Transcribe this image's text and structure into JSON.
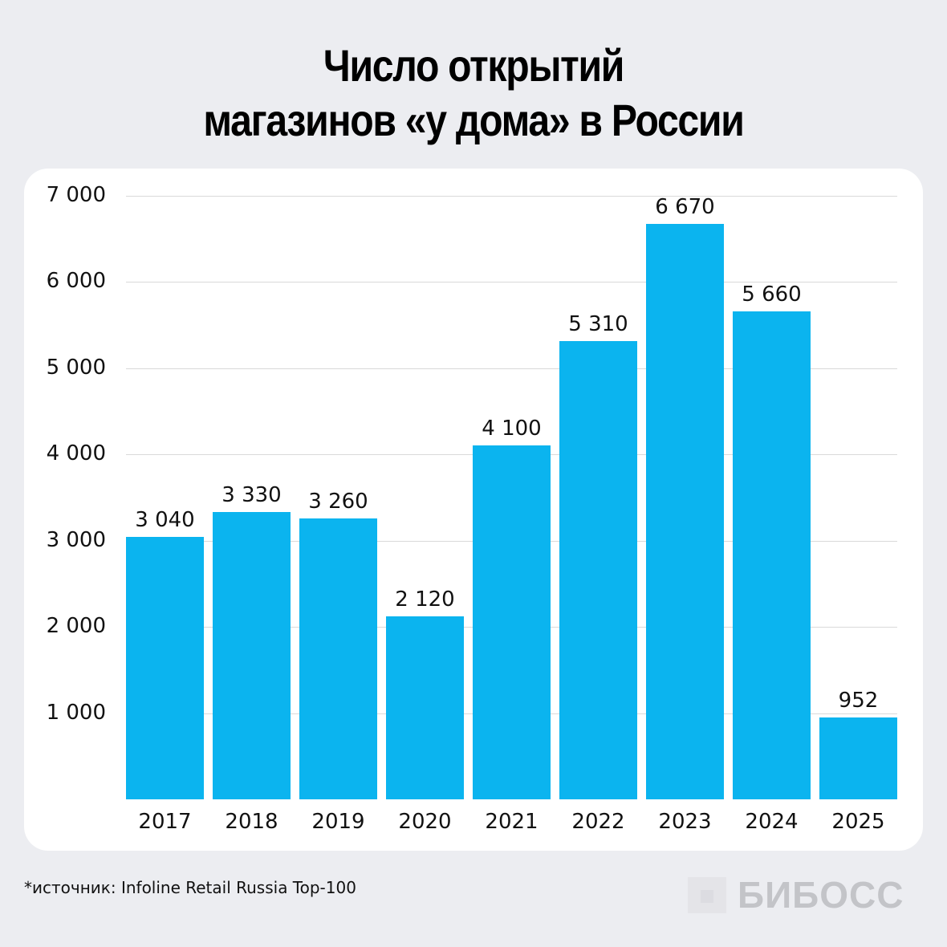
{
  "title": {
    "line1": "Число открытий",
    "line2": "магазинов «у дома» в России"
  },
  "footnote": "*источник: Infoline Retail Russia Top-100",
  "brand": {
    "name": "БИБОСС",
    "text_color": "#c3c4c8"
  },
  "colors": {
    "bar": "#0bb4ef",
    "background": "#ecedf1",
    "card": "#ffffff",
    "grid": "#d9d9d9"
  },
  "chart_data": {
    "type": "bar",
    "title": "Число открытий магазинов «у дома» в России",
    "xlabel": "",
    "ylabel": "",
    "categories": [
      "2017",
      "2018",
      "2019",
      "2020",
      "2021",
      "2022",
      "2023",
      "2024",
      "2025"
    ],
    "values": [
      3040,
      3330,
      3260,
      2120,
      4100,
      5310,
      6670,
      5660,
      952
    ],
    "value_labels": [
      "3 040",
      "3 330",
      "3 260",
      "2 120",
      "4 100",
      "5 310",
      "6 670",
      "5 660",
      "952"
    ],
    "ylim": [
      0,
      7000
    ],
    "yticks": [
      1000,
      2000,
      3000,
      4000,
      5000,
      6000,
      7000
    ],
    "ytick_labels": [
      "1 000",
      "2 000",
      "3 000",
      "4 000",
      "5 000",
      "6 000",
      "7 000"
    ],
    "grid": true,
    "legend": null,
    "source": "Infoline Retail Russia Top-100"
  }
}
